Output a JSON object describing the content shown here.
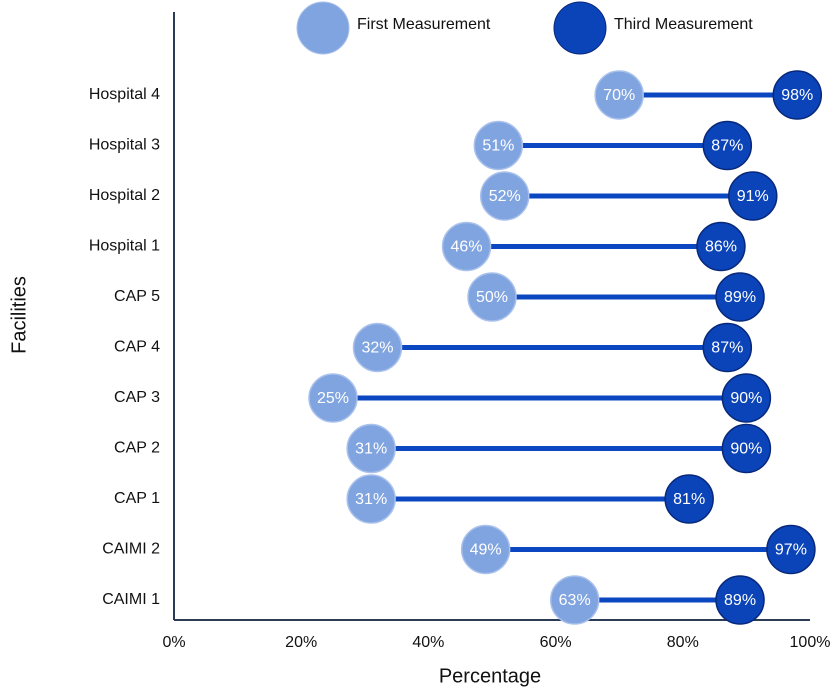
{
  "chart_data": {
    "type": "dumbbell",
    "x_label": "Percentage",
    "y_label": "Facilities",
    "categories": [
      "Hospital 4",
      "Hospital 3",
      "Hospital 2",
      "Hospital 1",
      "CAP 5",
      "CAP 4",
      "CAP 3",
      "CAP 2",
      "CAP 1",
      "CAIMI 2",
      "CAIMI 1"
    ],
    "series": [
      {
        "name": "First Measurement",
        "color": "#80a4e0",
        "stroke": "#a9c1ec",
        "values": [
          70,
          51,
          52,
          46,
          50,
          32,
          25,
          31,
          31,
          49,
          63
        ],
        "value_labels": [
          "70%",
          "51%",
          "52%",
          "46%",
          "50%",
          "32%",
          "25%",
          "31%",
          "31%",
          "49%",
          "63%"
        ]
      },
      {
        "name": "Third Measurement",
        "color": "#0a44b8",
        "stroke": "#08287a",
        "values": [
          98,
          87,
          91,
          86,
          89,
          87,
          90,
          90,
          81,
          97,
          89
        ],
        "value_labels": [
          "98%",
          "87%",
          "91%",
          "86%",
          "89%",
          "87%",
          "90%",
          "90%",
          "81%",
          "97%",
          "89%"
        ]
      }
    ],
    "connector_color": "#0a47c0",
    "xlim": [
      0,
      100
    ],
    "xticks": [
      {
        "value": 0,
        "label": "0%"
      },
      {
        "value": 20,
        "label": "20%"
      },
      {
        "value": 40,
        "label": "40%"
      },
      {
        "value": 60,
        "label": "60%"
      },
      {
        "value": 80,
        "label": "80%"
      },
      {
        "value": 100,
        "label": "100%"
      }
    ]
  }
}
